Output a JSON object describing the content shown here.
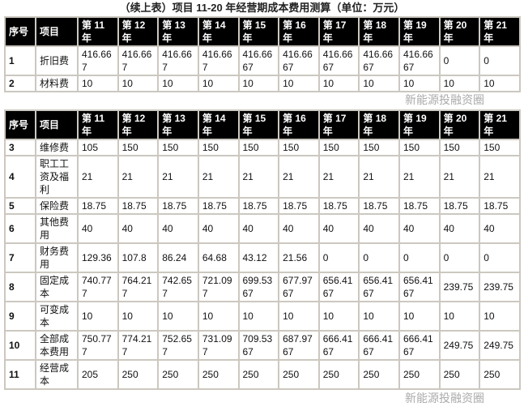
{
  "title": "（续上表）项目 11-20 年经营期成本费用测算（单位：万元）",
  "headers": [
    "序号",
    "项目",
    "第 11 年",
    "第 12 年",
    "第 13 年",
    "第 14 年",
    "第 15 年",
    "第 16 年",
    "第 17 年",
    "第 18 年",
    "第 19 年",
    "第 20 年",
    "第 21 年"
  ],
  "table1": [
    [
      "1",
      "折旧费",
      "416.667",
      "416.667",
      "416.667",
      "416.667",
      "416.6667",
      "416.6667",
      "416.6667",
      "416.6667",
      "416.6667",
      "0",
      "0"
    ],
    [
      "2",
      "材料费",
      "10",
      "10",
      "10",
      "10",
      "10",
      "10",
      "10",
      "10",
      "10",
      "10",
      "10"
    ]
  ],
  "table2": [
    [
      "3",
      "维修费",
      "105",
      "150",
      "150",
      "150",
      "150",
      "150",
      "150",
      "150",
      "150",
      "150",
      "150"
    ],
    [
      "4",
      "职工工资及福利",
      "21",
      "21",
      "21",
      "21",
      "21",
      "21",
      "21",
      "21",
      "21",
      "21",
      "21"
    ],
    [
      "5",
      "保险费",
      "18.75",
      "18.75",
      "18.75",
      "18.75",
      "18.75",
      "18.75",
      "18.75",
      "18.75",
      "18.75",
      "18.75",
      "18.75"
    ],
    [
      "6",
      "其他费用",
      "40",
      "40",
      "40",
      "40",
      "40",
      "40",
      "40",
      "40",
      "40",
      "40",
      "40"
    ],
    [
      "7",
      "财务费用",
      "129.36",
      "107.8",
      "86.24",
      "64.68",
      "43.12",
      "21.56",
      "0",
      "0",
      "0",
      "0",
      "0"
    ],
    [
      "8",
      "固定成本",
      "740.777",
      "764.217",
      "742.657",
      "721.097",
      "699.5367",
      "677.9767",
      "656.4167",
      "656.4167",
      "656.4167",
      "239.75",
      "239.75"
    ],
    [
      "9",
      "可变成本",
      "10",
      "10",
      "10",
      "10",
      "10",
      "10",
      "10",
      "10",
      "10",
      "10",
      "10"
    ],
    [
      "10",
      "全部成本费用",
      "750.777",
      "774.217",
      "752.657",
      "731.097",
      "709.5367",
      "687.9767",
      "666.4167",
      "666.4167",
      "666.4167",
      "249.75",
      "249.75"
    ],
    [
      "11",
      "经营成本",
      "205",
      "250",
      "250",
      "250",
      "250",
      "250",
      "250",
      "250",
      "250",
      "250",
      "250"
    ]
  ],
  "watermark": "新能源投融资圈"
}
